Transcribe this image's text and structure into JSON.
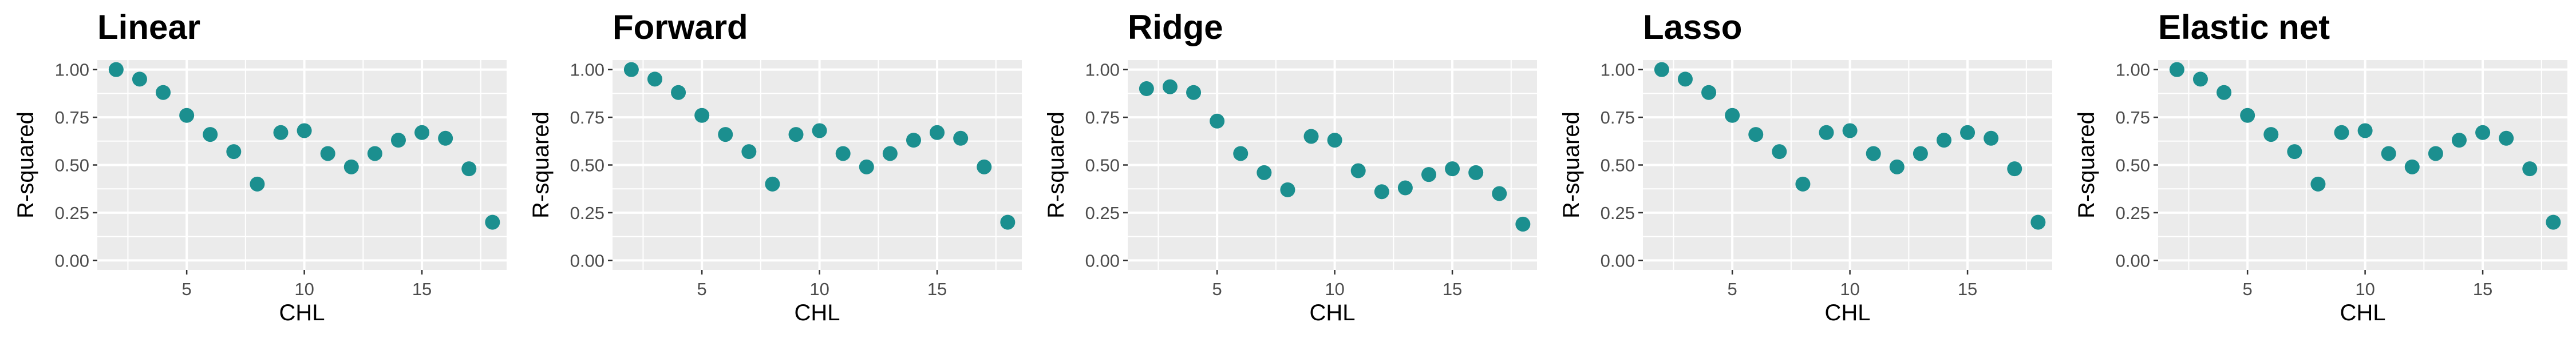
{
  "colors": {
    "point": "#1b8f8f",
    "panel_bg": "#ebebeb",
    "grid": "#ffffff",
    "tick_text": "#4d4d4d",
    "title_text": "#000000"
  },
  "chart_data": [
    {
      "type": "scatter",
      "title": "Linear",
      "xlabel": "CHL",
      "ylabel": "R-squared",
      "xlim": [
        1.2,
        18.6
      ],
      "ylim": [
        -0.05,
        1.05
      ],
      "xticks": [
        5,
        10,
        15
      ],
      "yticks": [
        0.0,
        0.25,
        0.5,
        0.75,
        1.0
      ],
      "ytick_labels": [
        "0.00",
        "0.25",
        "0.50",
        "0.75",
        "1.00"
      ],
      "grid": true,
      "x": [
        2,
        3,
        4,
        5,
        6,
        7,
        8,
        9,
        10,
        11,
        12,
        13,
        14,
        15,
        16,
        17,
        18
      ],
      "y": [
        1.0,
        0.95,
        0.88,
        0.76,
        0.66,
        0.57,
        0.4,
        0.67,
        0.68,
        0.56,
        0.49,
        0.56,
        0.63,
        0.67,
        0.64,
        0.48,
        0.2
      ]
    },
    {
      "type": "scatter",
      "title": "Forward",
      "xlabel": "CHL",
      "ylabel": "R-squared",
      "xlim": [
        1.2,
        18.6
      ],
      "ylim": [
        -0.05,
        1.05
      ],
      "xticks": [
        5,
        10,
        15
      ],
      "yticks": [
        0.0,
        0.25,
        0.5,
        0.75,
        1.0
      ],
      "ytick_labels": [
        "0.00",
        "0.25",
        "0.50",
        "0.75",
        "1.00"
      ],
      "grid": true,
      "x": [
        2,
        3,
        4,
        5,
        6,
        7,
        8,
        9,
        10,
        11,
        12,
        13,
        14,
        15,
        16,
        17,
        18
      ],
      "y": [
        1.0,
        0.95,
        0.88,
        0.76,
        0.66,
        0.57,
        0.4,
        0.66,
        0.68,
        0.56,
        0.49,
        0.56,
        0.63,
        0.67,
        0.64,
        0.49,
        0.2
      ]
    },
    {
      "type": "scatter",
      "title": "Ridge",
      "xlabel": "CHL",
      "ylabel": "R-squared",
      "xlim": [
        1.2,
        18.6
      ],
      "ylim": [
        -0.05,
        1.05
      ],
      "xticks": [
        5,
        10,
        15
      ],
      "yticks": [
        0.0,
        0.25,
        0.5,
        0.75,
        1.0
      ],
      "ytick_labels": [
        "0.00",
        "0.25",
        "0.50",
        "0.75",
        "1.00"
      ],
      "grid": true,
      "x": [
        2,
        3,
        4,
        5,
        6,
        7,
        8,
        9,
        10,
        11,
        12,
        13,
        14,
        15,
        16,
        17,
        18
      ],
      "y": [
        0.9,
        0.91,
        0.88,
        0.73,
        0.56,
        0.46,
        0.37,
        0.65,
        0.63,
        0.47,
        0.36,
        0.38,
        0.45,
        0.48,
        0.46,
        0.35,
        0.19
      ]
    },
    {
      "type": "scatter",
      "title": "Lasso",
      "xlabel": "CHL",
      "ylabel": "R-squared",
      "xlim": [
        1.2,
        18.6
      ],
      "ylim": [
        -0.05,
        1.05
      ],
      "xticks": [
        5,
        10,
        15
      ],
      "yticks": [
        0.0,
        0.25,
        0.5,
        0.75,
        1.0
      ],
      "ytick_labels": [
        "0.00",
        "0.25",
        "0.50",
        "0.75",
        "1.00"
      ],
      "grid": true,
      "x": [
        2,
        3,
        4,
        5,
        6,
        7,
        8,
        9,
        10,
        11,
        12,
        13,
        14,
        15,
        16,
        17,
        18
      ],
      "y": [
        1.0,
        0.95,
        0.88,
        0.76,
        0.66,
        0.57,
        0.4,
        0.67,
        0.68,
        0.56,
        0.49,
        0.56,
        0.63,
        0.67,
        0.64,
        0.48,
        0.2
      ]
    },
    {
      "type": "scatter",
      "title": "Elastic net",
      "xlabel": "CHL",
      "ylabel": "R-squared",
      "xlim": [
        1.2,
        18.6
      ],
      "ylim": [
        -0.05,
        1.05
      ],
      "xticks": [
        5,
        10,
        15
      ],
      "yticks": [
        0.0,
        0.25,
        0.5,
        0.75,
        1.0
      ],
      "ytick_labels": [
        "0.00",
        "0.25",
        "0.50",
        "0.75",
        "1.00"
      ],
      "grid": true,
      "x": [
        2,
        3,
        4,
        5,
        6,
        7,
        8,
        9,
        10,
        11,
        12,
        13,
        14,
        15,
        16,
        17,
        18
      ],
      "y": [
        1.0,
        0.95,
        0.88,
        0.76,
        0.66,
        0.57,
        0.4,
        0.67,
        0.68,
        0.56,
        0.49,
        0.56,
        0.63,
        0.67,
        0.64,
        0.48,
        0.2
      ]
    }
  ]
}
